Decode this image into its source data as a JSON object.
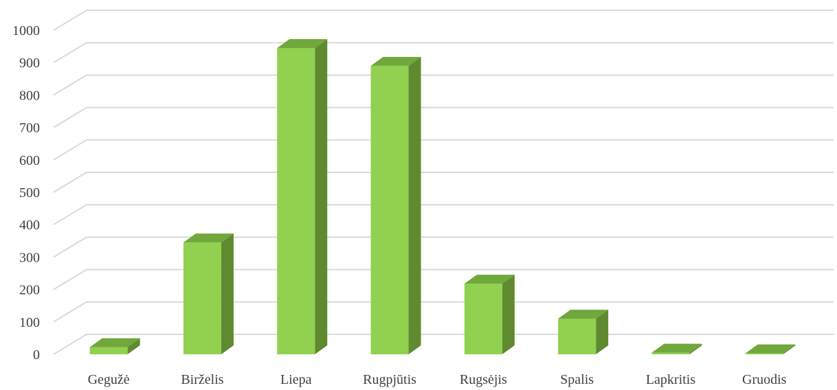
{
  "chart_data": {
    "type": "bar",
    "style": "3d-column",
    "categories": [
      "Gegužė",
      "Birželis",
      "Liepa",
      "Rugpjūtis",
      "Rugsėjis",
      "Spalis",
      "Lapkritis",
      "Gruodis"
    ],
    "values": [
      22,
      345,
      945,
      890,
      218,
      110,
      5,
      3
    ],
    "ylim": [
      0,
      1000
    ],
    "yticks": [
      0,
      100,
      200,
      300,
      400,
      500,
      600,
      700,
      800,
      900,
      1000
    ],
    "grid": true,
    "legend": "none",
    "colors": {
      "front": "#92d050",
      "top": "#70a83b",
      "side": "#5f8a30",
      "grid": "#d9d9d9",
      "text": "#404040"
    }
  }
}
